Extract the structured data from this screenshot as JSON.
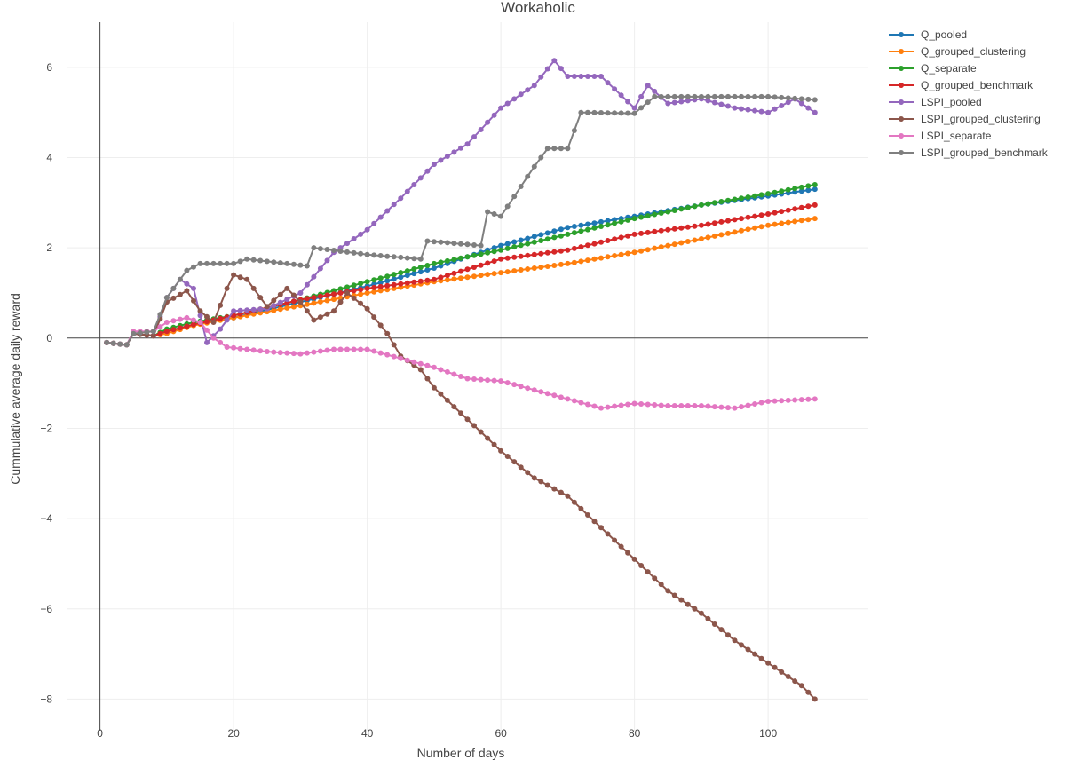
{
  "chart_data": {
    "type": "line",
    "title": "Workaholic",
    "xlabel": "Number of days",
    "ylabel": "Cummulative average daily reward",
    "xlim": [
      -5,
      115
    ],
    "ylim": [
      -8.7,
      7.0
    ],
    "xticks": [
      0,
      20,
      40,
      60,
      80,
      100
    ],
    "yticks": [
      -8,
      -6,
      -4,
      -2,
      0,
      2,
      4,
      6
    ],
    "tick_labels_x": [
      "0",
      "20",
      "40",
      "60",
      "80",
      "100"
    ],
    "tick_labels_y": [
      "−8",
      "−6",
      "−4",
      "−2",
      "0",
      "2",
      "4",
      "6"
    ],
    "grid": true,
    "zero_lines": true,
    "legend_position": "top-right",
    "markers": true,
    "series": [
      {
        "name": "Q_pooled",
        "color": "#1f77b4",
        "knots": [
          [
            1,
            -0.1
          ],
          [
            4,
            -0.15
          ],
          [
            5,
            0.1
          ],
          [
            8,
            0.05
          ],
          [
            10,
            0.15
          ],
          [
            14,
            0.3
          ],
          [
            20,
            0.45
          ],
          [
            30,
            0.8
          ],
          [
            40,
            1.15
          ],
          [
            50,
            1.55
          ],
          [
            60,
            2.05
          ],
          [
            70,
            2.45
          ],
          [
            80,
            2.7
          ],
          [
            90,
            2.95
          ],
          [
            100,
            3.15
          ],
          [
            107,
            3.3
          ]
        ]
      },
      {
        "name": "Q_grouped_clustering",
        "color": "#ff7f0e",
        "knots": [
          [
            1,
            -0.1
          ],
          [
            4,
            -0.15
          ],
          [
            5,
            0.1
          ],
          [
            8,
            0.05
          ],
          [
            10,
            0.1
          ],
          [
            14,
            0.28
          ],
          [
            20,
            0.45
          ],
          [
            30,
            0.72
          ],
          [
            40,
            1.0
          ],
          [
            50,
            1.25
          ],
          [
            60,
            1.45
          ],
          [
            70,
            1.65
          ],
          [
            80,
            1.9
          ],
          [
            90,
            2.2
          ],
          [
            100,
            2.5
          ],
          [
            107,
            2.65
          ]
        ]
      },
      {
        "name": "Q_separate",
        "color": "#2ca02c",
        "knots": [
          [
            1,
            -0.1
          ],
          [
            4,
            -0.15
          ],
          [
            5,
            0.1
          ],
          [
            8,
            0.05
          ],
          [
            10,
            0.2
          ],
          [
            14,
            0.35
          ],
          [
            20,
            0.5
          ],
          [
            30,
            0.85
          ],
          [
            40,
            1.25
          ],
          [
            50,
            1.65
          ],
          [
            60,
            1.95
          ],
          [
            70,
            2.3
          ],
          [
            80,
            2.65
          ],
          [
            90,
            2.95
          ],
          [
            100,
            3.2
          ],
          [
            107,
            3.4
          ]
        ]
      },
      {
        "name": "Q_grouped_benchmark",
        "color": "#d62728",
        "knots": [
          [
            1,
            -0.1
          ],
          [
            4,
            -0.15
          ],
          [
            5,
            0.1
          ],
          [
            8,
            0.05
          ],
          [
            10,
            0.15
          ],
          [
            14,
            0.3
          ],
          [
            20,
            0.5
          ],
          [
            30,
            0.85
          ],
          [
            40,
            1.1
          ],
          [
            50,
            1.3
          ],
          [
            60,
            1.75
          ],
          [
            70,
            1.95
          ],
          [
            80,
            2.3
          ],
          [
            90,
            2.5
          ],
          [
            100,
            2.75
          ],
          [
            107,
            2.95
          ]
        ]
      },
      {
        "name": "LSPI_pooled",
        "color": "#9467bd",
        "knots": [
          [
            1,
            -0.1
          ],
          [
            4,
            -0.15
          ],
          [
            5,
            0.1
          ],
          [
            8,
            0.05
          ],
          [
            10,
            0.9
          ],
          [
            12,
            1.3
          ],
          [
            14,
            1.1
          ],
          [
            16,
            -0.1
          ],
          [
            18,
            0.2
          ],
          [
            20,
            0.6
          ],
          [
            25,
            0.65
          ],
          [
            30,
            1.0
          ],
          [
            35,
            1.9
          ],
          [
            40,
            2.4
          ],
          [
            45,
            3.1
          ],
          [
            50,
            3.85
          ],
          [
            55,
            4.3
          ],
          [
            60,
            5.1
          ],
          [
            65,
            5.6
          ],
          [
            68,
            6.15
          ],
          [
            70,
            5.8
          ],
          [
            75,
            5.8
          ],
          [
            80,
            5.1
          ],
          [
            82,
            5.6
          ],
          [
            85,
            5.2
          ],
          [
            90,
            5.3
          ],
          [
            95,
            5.1
          ],
          [
            100,
            5.0
          ],
          [
            104,
            5.3
          ],
          [
            107,
            5.0
          ]
        ]
      },
      {
        "name": "LSPI_grouped_clustering",
        "color": "#8c564b",
        "knots": [
          [
            1,
            -0.1
          ],
          [
            4,
            -0.15
          ],
          [
            5,
            0.1
          ],
          [
            8,
            0.05
          ],
          [
            10,
            0.8
          ],
          [
            13,
            1.05
          ],
          [
            15,
            0.6
          ],
          [
            17,
            0.35
          ],
          [
            19,
            1.1
          ],
          [
            20,
            1.4
          ],
          [
            22,
            1.3
          ],
          [
            25,
            0.7
          ],
          [
            28,
            1.1
          ],
          [
            30,
            0.8
          ],
          [
            32,
            0.4
          ],
          [
            35,
            0.6
          ],
          [
            37,
            1.0
          ],
          [
            40,
            0.65
          ],
          [
            43,
            0.1
          ],
          [
            45,
            -0.4
          ],
          [
            48,
            -0.7
          ],
          [
            50,
            -1.1
          ],
          [
            55,
            -1.8
          ],
          [
            60,
            -2.5
          ],
          [
            65,
            -3.1
          ],
          [
            70,
            -3.5
          ],
          [
            75,
            -4.2
          ],
          [
            80,
            -4.9
          ],
          [
            85,
            -5.6
          ],
          [
            90,
            -6.1
          ],
          [
            95,
            -6.7
          ],
          [
            100,
            -7.2
          ],
          [
            105,
            -7.7
          ],
          [
            107,
            -8.0
          ]
        ]
      },
      {
        "name": "LSPI_separate",
        "color": "#e377c2",
        "knots": [
          [
            1,
            -0.1
          ],
          [
            4,
            -0.15
          ],
          [
            5,
            0.15
          ],
          [
            8,
            0.15
          ],
          [
            10,
            0.35
          ],
          [
            13,
            0.45
          ],
          [
            15,
            0.35
          ],
          [
            17,
            0.0
          ],
          [
            19,
            -0.2
          ],
          [
            25,
            -0.3
          ],
          [
            30,
            -0.35
          ],
          [
            35,
            -0.25
          ],
          [
            40,
            -0.25
          ],
          [
            45,
            -0.45
          ],
          [
            50,
            -0.65
          ],
          [
            55,
            -0.9
          ],
          [
            60,
            -0.95
          ],
          [
            65,
            -1.15
          ],
          [
            70,
            -1.35
          ],
          [
            75,
            -1.55
          ],
          [
            80,
            -1.45
          ],
          [
            85,
            -1.5
          ],
          [
            90,
            -1.5
          ],
          [
            95,
            -1.55
          ],
          [
            100,
            -1.4
          ],
          [
            107,
            -1.35
          ]
        ]
      },
      {
        "name": "LSPI_grouped_benchmark",
        "color": "#7f7f7f",
        "knots": [
          [
            1,
            -0.1
          ],
          [
            4,
            -0.15
          ],
          [
            5,
            0.1
          ],
          [
            8,
            0.15
          ],
          [
            10,
            0.9
          ],
          [
            13,
            1.5
          ],
          [
            15,
            1.65
          ],
          [
            20,
            1.65
          ],
          [
            22,
            1.75
          ],
          [
            28,
            1.65
          ],
          [
            31,
            1.6
          ],
          [
            32,
            2.0
          ],
          [
            40,
            1.85
          ],
          [
            48,
            1.75
          ],
          [
            49,
            2.15
          ],
          [
            57,
            2.05
          ],
          [
            58,
            2.8
          ],
          [
            60,
            2.7
          ],
          [
            65,
            3.8
          ],
          [
            67,
            4.2
          ],
          [
            70,
            4.2
          ],
          [
            72,
            5.0
          ],
          [
            80,
            4.98
          ],
          [
            83,
            5.35
          ],
          [
            90,
            5.35
          ],
          [
            100,
            5.35
          ],
          [
            107,
            5.28
          ]
        ]
      }
    ]
  }
}
